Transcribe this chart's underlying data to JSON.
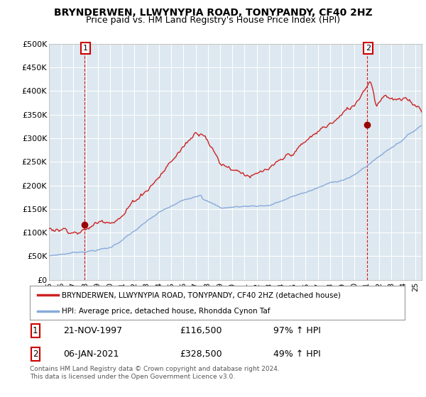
{
  "title": "BRYNDERWEN, LLWYNYPIA ROAD, TONYPANDY, CF40 2HZ",
  "subtitle": "Price paid vs. HM Land Registry's House Price Index (HPI)",
  "ylabel_ticks": [
    "£0",
    "£50K",
    "£100K",
    "£150K",
    "£200K",
    "£250K",
    "£300K",
    "£350K",
    "£400K",
    "£450K",
    "£500K"
  ],
  "ytick_values": [
    0,
    50000,
    100000,
    150000,
    200000,
    250000,
    300000,
    350000,
    400000,
    450000,
    500000
  ],
  "ylim": [
    0,
    500000
  ],
  "xlim_start": 1995.0,
  "xlim_end": 2025.5,
  "red_line_color": "#cc2222",
  "blue_line_color": "#88aadd",
  "chart_bg_color": "#dde8f0",
  "marker_color": "#990000",
  "point1_x": 1997.9,
  "point1_y": 116500,
  "point2_x": 2021.02,
  "point2_y": 328500,
  "legend_red_label": "BRYNDERWEN, LLWYNYPIA ROAD, TONYPANDY, CF40 2HZ (detached house)",
  "legend_blue_label": "HPI: Average price, detached house, Rhondda Cynon Taf",
  "annot1_date": "21-NOV-1997",
  "annot1_price": "£116,500",
  "annot1_hpi": "97% ↑ HPI",
  "annot2_date": "06-JAN-2021",
  "annot2_price": "£328,500",
  "annot2_hpi": "49% ↑ HPI",
  "footer": "Contains HM Land Registry data © Crown copyright and database right 2024.\nThis data is licensed under the Open Government Licence v3.0.",
  "background_color": "#ffffff",
  "grid_color": "#ffffff",
  "title_fontsize": 10,
  "subtitle_fontsize": 9
}
